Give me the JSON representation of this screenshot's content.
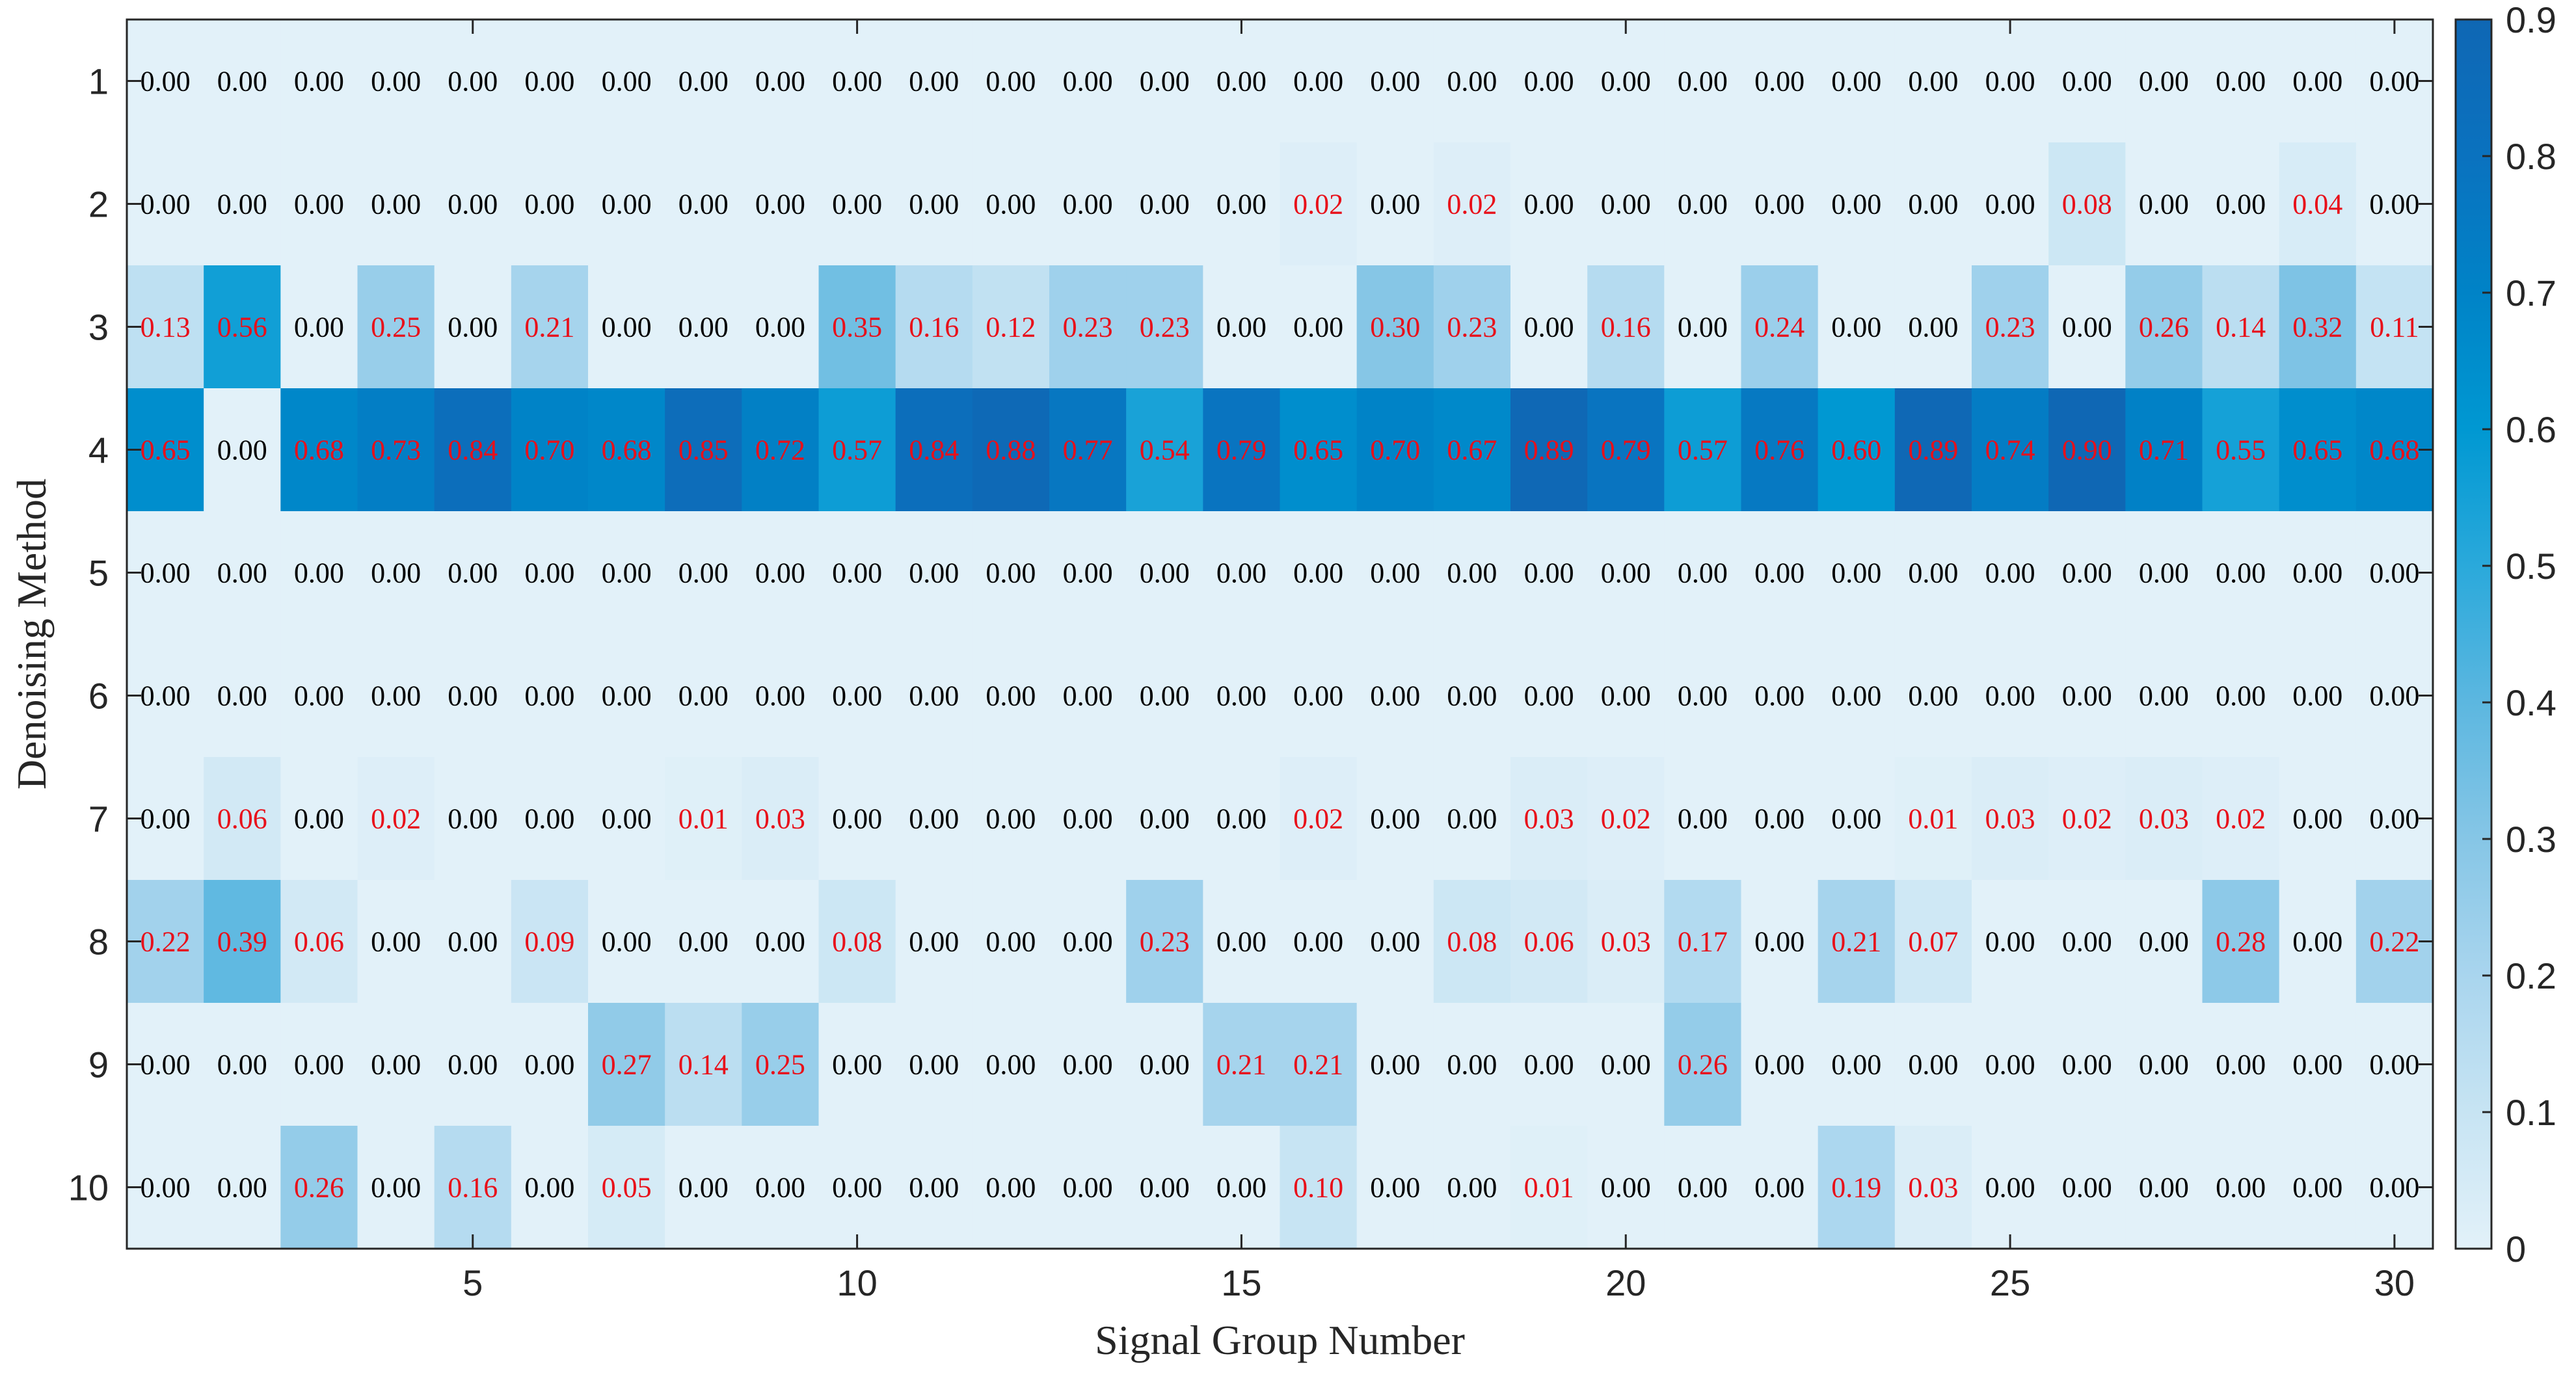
{
  "chart_data": {
    "type": "heatmap",
    "xlabel": "Signal Group Number",
    "ylabel": "Denoising Method",
    "x_range": [
      1,
      30
    ],
    "y_range": [
      1,
      10
    ],
    "x_tick_values": [
      5,
      10,
      15,
      20,
      25,
      30
    ],
    "x_tick_labels": [
      "5",
      "10",
      "15",
      "20",
      "25",
      "30"
    ],
    "y_tick_values": [
      1,
      2,
      3,
      4,
      5,
      6,
      7,
      8,
      9,
      10
    ],
    "y_tick_labels": [
      "1",
      "2",
      "3",
      "4",
      "5",
      "6",
      "7",
      "8",
      "9",
      "10"
    ],
    "colorbar": {
      "range": [
        0,
        0.9
      ],
      "tick_values": [
        0,
        0.1,
        0.2,
        0.3,
        0.4,
        0.5,
        0.6,
        0.7,
        0.8,
        0.9
      ],
      "tick_labels": [
        "0",
        "0.1",
        "0.2",
        "0.3",
        "0.4",
        "0.5",
        "0.6",
        "0.7",
        "0.8",
        "0.9"
      ]
    },
    "colormap": [
      "#E2F1F9",
      "#C7E4F3",
      "#A9D5EE",
      "#86C6E6",
      "#5CB7E0",
      "#2AA9DB",
      "#0098D2",
      "#0083C7",
      "#0A72BF",
      "#0F67B4"
    ],
    "label_colors": {
      "zero": "#000000",
      "nonzero": "#E8101A"
    },
    "values": [
      [
        0.0,
        0.0,
        0.0,
        0.0,
        0.0,
        0.0,
        0.0,
        0.0,
        0.0,
        0.0,
        0.0,
        0.0,
        0.0,
        0.0,
        0.0,
        0.0,
        0.0,
        0.0,
        0.0,
        0.0,
        0.0,
        0.0,
        0.0,
        0.0,
        0.0,
        0.0,
        0.0,
        0.0,
        0.0,
        0.0
      ],
      [
        0.0,
        0.0,
        0.0,
        0.0,
        0.0,
        0.0,
        0.0,
        0.0,
        0.0,
        0.0,
        0.0,
        0.0,
        0.0,
        0.0,
        0.0,
        0.02,
        0.0,
        0.02,
        0.0,
        0.0,
        0.0,
        0.0,
        0.0,
        0.0,
        0.0,
        0.08,
        0.0,
        0.0,
        0.04,
        0.0
      ],
      [
        0.13,
        0.56,
        0.0,
        0.25,
        0.0,
        0.21,
        0.0,
        0.0,
        0.0,
        0.35,
        0.16,
        0.12,
        0.23,
        0.23,
        0.0,
        0.0,
        0.3,
        0.23,
        0.0,
        0.16,
        0.0,
        0.24,
        0.0,
        0.0,
        0.23,
        0.0,
        0.26,
        0.14,
        0.32,
        0.11
      ],
      [
        0.65,
        0.0,
        0.68,
        0.73,
        0.84,
        0.7,
        0.68,
        0.85,
        0.72,
        0.57,
        0.84,
        0.88,
        0.77,
        0.54,
        0.79,
        0.65,
        0.7,
        0.67,
        0.89,
        0.79,
        0.57,
        0.76,
        0.6,
        0.89,
        0.74,
        0.9,
        0.71,
        0.55,
        0.65,
        0.68
      ],
      [
        0.0,
        0.0,
        0.0,
        0.0,
        0.0,
        0.0,
        0.0,
        0.0,
        0.0,
        0.0,
        0.0,
        0.0,
        0.0,
        0.0,
        0.0,
        0.0,
        0.0,
        0.0,
        0.0,
        0.0,
        0.0,
        0.0,
        0.0,
        0.0,
        0.0,
        0.0,
        0.0,
        0.0,
        0.0,
        0.0
      ],
      [
        0.0,
        0.0,
        0.0,
        0.0,
        0.0,
        0.0,
        0.0,
        0.0,
        0.0,
        0.0,
        0.0,
        0.0,
        0.0,
        0.0,
        0.0,
        0.0,
        0.0,
        0.0,
        0.0,
        0.0,
        0.0,
        0.0,
        0.0,
        0.0,
        0.0,
        0.0,
        0.0,
        0.0,
        0.0,
        0.0
      ],
      [
        0.0,
        0.06,
        0.0,
        0.02,
        0.0,
        0.0,
        0.0,
        0.01,
        0.03,
        0.0,
        0.0,
        0.0,
        0.0,
        0.0,
        0.0,
        0.02,
        0.0,
        0.0,
        0.03,
        0.02,
        0.0,
        0.0,
        0.0,
        0.01,
        0.03,
        0.02,
        0.03,
        0.02,
        0.0,
        0.0
      ],
      [
        0.22,
        0.39,
        0.06,
        0.0,
        0.0,
        0.09,
        0.0,
        0.0,
        0.0,
        0.08,
        0.0,
        0.0,
        0.0,
        0.23,
        0.0,
        0.0,
        0.0,
        0.08,
        0.06,
        0.03,
        0.17,
        0.0,
        0.21,
        0.07,
        0.0,
        0.0,
        0.0,
        0.28,
        0.0,
        0.22
      ],
      [
        0.0,
        0.0,
        0.0,
        0.0,
        0.0,
        0.0,
        0.27,
        0.14,
        0.25,
        0.0,
        0.0,
        0.0,
        0.0,
        0.0,
        0.21,
        0.21,
        0.0,
        0.0,
        0.0,
        0.0,
        0.26,
        0.0,
        0.0,
        0.0,
        0.0,
        0.0,
        0.0,
        0.0,
        0.0,
        0.0
      ],
      [
        0.0,
        0.0,
        0.26,
        0.0,
        0.16,
        0.0,
        0.05,
        0.0,
        0.0,
        0.0,
        0.0,
        0.0,
        0.0,
        0.0,
        0.0,
        0.1,
        0.0,
        0.0,
        0.01,
        0.0,
        0.0,
        0.0,
        0.19,
        0.03,
        0.0,
        0.0,
        0.0,
        0.0,
        0.0,
        0.0
      ]
    ]
  }
}
